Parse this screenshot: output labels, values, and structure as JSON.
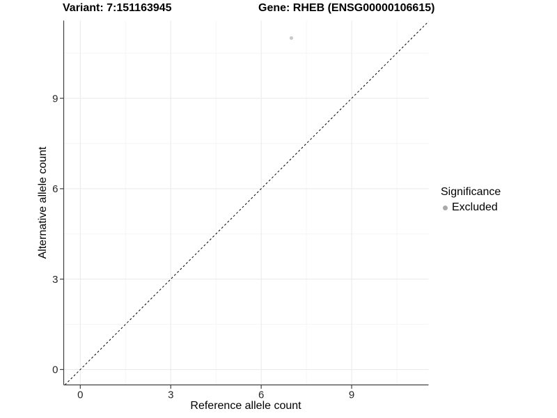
{
  "chart_data": {
    "type": "scatter",
    "title_variant": "Variant: 7:151163945",
    "title_gene": "Gene: RHEB (ENSG00000106615)",
    "xlabel": "Reference allele count",
    "ylabel": "Alternative allele count",
    "xlim": [
      -0.55,
      11.55
    ],
    "ylim": [
      -0.51,
      11.58
    ],
    "xticks": [
      0,
      3,
      6,
      9
    ],
    "yticks": [
      0,
      3,
      6,
      9
    ],
    "minor_ticks": [
      1.5,
      4.5,
      7.5,
      10.5
    ],
    "grid": true,
    "legend_position": "right",
    "identity_line": {
      "style": "dashed",
      "color": "#000000"
    },
    "series": [
      {
        "name": "Excluded",
        "color": "#c9c9c9",
        "points": [
          {
            "x": 7,
            "y": 11
          }
        ]
      }
    ],
    "legend": {
      "title": "Significance",
      "items": [
        {
          "label": "Excluded",
          "color": "#a9a9a9"
        }
      ]
    },
    "colors": {
      "grid_major": "#e9e9e9",
      "grid_minor": "#f4f4f4",
      "axis": "#404040",
      "tick": "#404040",
      "tick_label": "#262626"
    }
  }
}
